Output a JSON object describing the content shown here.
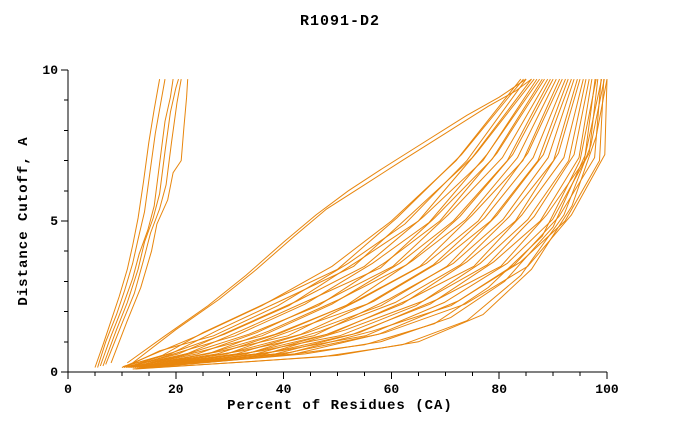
{
  "figure": {
    "title": "R1091-D2",
    "xlabel": "Percent of Residues (CA)",
    "ylabel": "Distance Cutoff, A"
  },
  "chart_data": {
    "type": "line",
    "title": "R1091-D2",
    "xlabel": "Percent of Residues (CA)",
    "ylabel": "Distance Cutoff, A",
    "xlim": [
      0,
      100
    ],
    "ylim": [
      0,
      10
    ],
    "x_major_ticks": [
      0,
      20,
      40,
      60,
      80,
      100
    ],
    "x_minor_step": 5,
    "y_major_ticks": [
      0,
      5,
      10
    ],
    "y_minor_step": 1,
    "grid": false,
    "legend_position": "none",
    "line_color": "#e8860d",
    "axis_color": "#000000",
    "series": [
      [
        [
          10,
          0.15
        ],
        [
          16,
          0.6
        ],
        [
          24,
          1.2
        ],
        [
          36,
          2.2
        ],
        [
          49,
          3.5
        ],
        [
          60,
          5.0
        ],
        [
          72,
          7.0
        ],
        [
          84,
          9.7
        ]
      ],
      [
        [
          10.2,
          0.18
        ],
        [
          17.5,
          0.55
        ],
        [
          25,
          1.3
        ],
        [
          37,
          2.3
        ],
        [
          50,
          3.4
        ],
        [
          61,
          5.1
        ],
        [
          73,
          7.2
        ],
        [
          84.5,
          9.7
        ]
      ],
      [
        [
          10.4,
          0.15
        ],
        [
          17,
          0.7
        ],
        [
          27,
          1.2
        ],
        [
          39,
          2.2
        ],
        [
          52,
          3.6
        ],
        [
          62.5,
          4.9
        ],
        [
          74,
          7.0
        ],
        [
          85,
          9.7
        ]
      ],
      [
        [
          10.6,
          0.2
        ],
        [
          19,
          0.6
        ],
        [
          28,
          1.4
        ],
        [
          40,
          2.4
        ],
        [
          53,
          3.5
        ],
        [
          63.5,
          5.2
        ],
        [
          75,
          7.1
        ],
        [
          86,
          9.7
        ]
      ],
      [
        [
          10.8,
          0.15
        ],
        [
          19.5,
          0.65
        ],
        [
          29,
          1.25
        ],
        [
          41,
          2.2
        ],
        [
          54,
          3.7
        ],
        [
          65,
          5.0
        ],
        [
          76,
          7.3
        ],
        [
          86.5,
          9.7
        ]
      ],
      [
        [
          11,
          0.18
        ],
        [
          20.5,
          0.6
        ],
        [
          30,
          1.35
        ],
        [
          42.5,
          2.35
        ],
        [
          55,
          3.5
        ],
        [
          66,
          5.15
        ],
        [
          77,
          7.0
        ],
        [
          87,
          9.7
        ]
      ],
      [
        [
          11.2,
          0.15
        ],
        [
          21.5,
          0.7
        ],
        [
          31,
          1.2
        ],
        [
          44,
          2.25
        ],
        [
          56.5,
          3.6
        ],
        [
          67,
          4.95
        ],
        [
          77.7,
          7.2
        ],
        [
          87.5,
          9.7
        ]
      ],
      [
        [
          11.4,
          0.2
        ],
        [
          22,
          0.6
        ],
        [
          32.5,
          1.4
        ],
        [
          45,
          2.4
        ],
        [
          58,
          3.45
        ],
        [
          68,
          5.1
        ],
        [
          78.7,
          7.05
        ],
        [
          88,
          9.7
        ]
      ],
      [
        [
          11.6,
          0.15
        ],
        [
          23,
          0.65
        ],
        [
          33.5,
          1.25
        ],
        [
          46.5,
          2.2
        ],
        [
          59,
          3.65
        ],
        [
          69,
          5.0
        ],
        [
          79.6,
          7.25
        ],
        [
          88.4,
          9.7
        ]
      ],
      [
        [
          11.8,
          0.18
        ],
        [
          24,
          0.6
        ],
        [
          35,
          1.3
        ],
        [
          47.7,
          2.35
        ],
        [
          60.3,
          3.5
        ],
        [
          70.5,
          5.2
        ],
        [
          80.6,
          7.1
        ],
        [
          89,
          9.7
        ]
      ],
      [
        [
          12,
          0.15
        ],
        [
          25,
          0.7
        ],
        [
          36,
          1.2
        ],
        [
          49,
          2.25
        ],
        [
          61.5,
          3.6
        ],
        [
          71.5,
          5.0
        ],
        [
          81.5,
          7.0
        ],
        [
          89.5,
          9.7
        ]
      ],
      [
        [
          12.2,
          0.2
        ],
        [
          26,
          0.6
        ],
        [
          37.2,
          1.35
        ],
        [
          50.3,
          2.4
        ],
        [
          62.8,
          3.55
        ],
        [
          72.7,
          5.15
        ],
        [
          82.5,
          7.2
        ],
        [
          90,
          9.7
        ]
      ],
      [
        [
          12.4,
          0.15
        ],
        [
          26.8,
          0.65
        ],
        [
          38.4,
          1.25
        ],
        [
          51.6,
          2.2
        ],
        [
          64,
          3.7
        ],
        [
          73.8,
          5.05
        ],
        [
          83.4,
          7.1
        ],
        [
          90.6,
          9.7
        ]
      ],
      [
        [
          12.6,
          0.18
        ],
        [
          27.7,
          0.6
        ],
        [
          39.6,
          1.3
        ],
        [
          52.9,
          2.3
        ],
        [
          65.3,
          3.5
        ],
        [
          75,
          5.2
        ],
        [
          84.4,
          7.0
        ],
        [
          91.2,
          9.7
        ]
      ],
      [
        [
          12.8,
          0.15
        ],
        [
          28.6,
          0.7
        ],
        [
          40.8,
          1.2
        ],
        [
          54.2,
          2.4
        ],
        [
          66.5,
          3.6
        ],
        [
          76.1,
          5.0
        ],
        [
          85.3,
          7.25
        ],
        [
          91.7,
          9.7
        ]
      ],
      [
        [
          13,
          0.2
        ],
        [
          29.5,
          0.6
        ],
        [
          42,
          1.4
        ],
        [
          55.5,
          2.25
        ],
        [
          67.8,
          3.55
        ],
        [
          77.3,
          5.1
        ],
        [
          86.3,
          7.1
        ],
        [
          92.3,
          9.7
        ]
      ],
      [
        [
          13.2,
          0.15
        ],
        [
          30.4,
          0.65
        ],
        [
          43.2,
          1.25
        ],
        [
          56.8,
          2.35
        ],
        [
          69,
          3.65
        ],
        [
          78.4,
          5.0
        ],
        [
          87.2,
          7.0
        ],
        [
          92.8,
          9.7
        ]
      ],
      [
        [
          13.4,
          0.18
        ],
        [
          31.3,
          0.6
        ],
        [
          44.4,
          1.3
        ],
        [
          58.1,
          2.2
        ],
        [
          70.3,
          3.5
        ],
        [
          79.6,
          5.2
        ],
        [
          88.2,
          7.2
        ],
        [
          93.4,
          9.7
        ]
      ],
      [
        [
          13.6,
          0.15
        ],
        [
          32.2,
          0.7
        ],
        [
          45.6,
          1.2
        ],
        [
          59.4,
          2.4
        ],
        [
          71.5,
          3.6
        ],
        [
          80.7,
          5.05
        ],
        [
          89.1,
          7.1
        ],
        [
          93.9,
          9.7
        ]
      ],
      [
        [
          13.8,
          0.2
        ],
        [
          33.1,
          0.6
        ],
        [
          46.8,
          1.35
        ],
        [
          60.7,
          2.3
        ],
        [
          72.8,
          3.55
        ],
        [
          81.9,
          5.15
        ],
        [
          90.1,
          7.0
        ],
        [
          94.5,
          9.7
        ]
      ],
      [
        [
          14,
          0.15
        ],
        [
          34,
          0.65
        ],
        [
          48,
          1.25
        ],
        [
          62,
          2.25
        ],
        [
          74,
          3.65
        ],
        [
          83,
          5.0
        ],
        [
          91,
          7.25
        ],
        [
          95,
          9.7
        ]
      ],
      [
        [
          14.2,
          0.18
        ],
        [
          34.9,
          0.6
        ],
        [
          49.2,
          1.3
        ],
        [
          63.3,
          2.4
        ],
        [
          75.3,
          3.5
        ],
        [
          84.2,
          5.2
        ],
        [
          92,
          7.1
        ],
        [
          95.6,
          9.7
        ]
      ],
      [
        [
          14.4,
          0.15
        ],
        [
          35.8,
          0.7
        ],
        [
          50.4,
          1.2
        ],
        [
          64.6,
          2.2
        ],
        [
          76.5,
          3.6
        ],
        [
          85.3,
          5.05
        ],
        [
          92.9,
          7.0
        ],
        [
          96.1,
          9.7
        ]
      ],
      [
        [
          14.6,
          0.2
        ],
        [
          36.7,
          0.6
        ],
        [
          51.6,
          1.4
        ],
        [
          65.9,
          2.35
        ],
        [
          77.8,
          3.55
        ],
        [
          86.5,
          5.15
        ],
        [
          93.9,
          7.2
        ],
        [
          96.7,
          9.7
        ]
      ],
      [
        [
          14.8,
          0.15
        ],
        [
          37.6,
          0.65
        ],
        [
          52.8,
          1.25
        ],
        [
          67.2,
          2.25
        ],
        [
          79,
          3.65
        ],
        [
          87.6,
          5.0
        ],
        [
          94.8,
          7.1
        ],
        [
          97.2,
          9.7
        ]
      ],
      [
        [
          15,
          0.18
        ],
        [
          38.5,
          0.6
        ],
        [
          54,
          1.3
        ],
        [
          68.5,
          2.4
        ],
        [
          80.3,
          3.5
        ],
        [
          88.8,
          5.2
        ],
        [
          95.8,
          7.0
        ],
        [
          97.8,
          9.7
        ]
      ],
      [
        [
          15.2,
          0.15
        ],
        [
          39.4,
          0.7
        ],
        [
          55.2,
          1.2
        ],
        [
          69.8,
          2.3
        ],
        [
          81.5,
          3.6
        ],
        [
          89.9,
          5.05
        ],
        [
          96.7,
          7.25
        ],
        [
          98.3,
          9.7
        ]
      ],
      [
        [
          15.4,
          0.2
        ],
        [
          40.3,
          0.6
        ],
        [
          56.4,
          1.35
        ],
        [
          71.1,
          2.2
        ],
        [
          82.8,
          3.55
        ],
        [
          91.1,
          5.15
        ],
        [
          97.7,
          7.1
        ],
        [
          98.9,
          9.7
        ]
      ],
      [
        [
          15.6,
          0.15
        ],
        [
          41.2,
          0.65
        ],
        [
          57.6,
          1.25
        ],
        [
          72.4,
          2.35
        ],
        [
          84,
          3.65
        ],
        [
          92.2,
          5.0
        ],
        [
          98.6,
          7.0
        ],
        [
          99.4,
          9.7
        ]
      ],
      [
        [
          15.8,
          0.18
        ],
        [
          42.1,
          0.6
        ],
        [
          58.8,
          1.3
        ],
        [
          73.7,
          2.25
        ],
        [
          85.3,
          3.5
        ],
        [
          93.4,
          5.2
        ],
        [
          99.6,
          7.2
        ],
        [
          100,
          9.7
        ]
      ],
      [
        [
          12,
          0.1
        ],
        [
          25,
          0.3
        ],
        [
          40,
          0.55
        ],
        [
          55,
          0.9
        ],
        [
          68,
          1.6
        ],
        [
          78,
          2.8
        ],
        [
          88,
          4.5
        ],
        [
          95,
          7.0
        ],
        [
          98,
          9.7
        ]
      ],
      [
        [
          13,
          0.12
        ],
        [
          28,
          0.35
        ],
        [
          44,
          0.6
        ],
        [
          58,
          1.0
        ],
        [
          71,
          1.8
        ],
        [
          81,
          3.0
        ],
        [
          90,
          4.8
        ],
        [
          96,
          7.2
        ],
        [
          99,
          9.7
        ]
      ],
      [
        [
          12.5,
          0.1
        ],
        [
          30,
          0.3
        ],
        [
          47,
          0.5
        ],
        [
          62,
          0.9
        ],
        [
          74,
          1.7
        ],
        [
          84,
          3.2
        ],
        [
          92,
          5.2
        ],
        [
          97,
          7.5
        ],
        [
          99.5,
          9.7
        ]
      ],
      [
        [
          13.5,
          0.12
        ],
        [
          32,
          0.32
        ],
        [
          50,
          0.55
        ],
        [
          65,
          1.0
        ],
        [
          77,
          1.9
        ],
        [
          86,
          3.4
        ],
        [
          93.5,
          5.5
        ],
        [
          98,
          7.8
        ],
        [
          100,
          9.7
        ]
      ],
      [
        [
          5,
          0.15
        ],
        [
          6.5,
          0.9
        ],
        [
          8,
          1.7
        ],
        [
          9.5,
          2.5
        ],
        [
          11,
          3.4
        ],
        [
          12,
          4.2
        ],
        [
          13,
          5.1
        ],
        [
          14,
          6.3
        ],
        [
          15,
          7.6
        ],
        [
          16,
          8.7
        ],
        [
          17,
          9.7
        ]
      ],
      [
        [
          5.5,
          0.15
        ],
        [
          7,
          1.0
        ],
        [
          9,
          1.9
        ],
        [
          10.5,
          2.7
        ],
        [
          12,
          3.6
        ],
        [
          13,
          4.4
        ],
        [
          14.2,
          5.3
        ],
        [
          15.2,
          6.6
        ],
        [
          16.2,
          7.9
        ],
        [
          17.2,
          8.9
        ],
        [
          18,
          9.7
        ]
      ],
      [
        [
          6,
          0.2
        ],
        [
          8,
          1.2
        ],
        [
          10,
          2.1
        ],
        [
          12,
          3.1
        ],
        [
          13.2,
          3.9
        ],
        [
          14.8,
          4.7
        ],
        [
          16,
          5.5
        ],
        [
          17,
          6.9
        ],
        [
          18,
          8.3
        ],
        [
          19,
          9.1
        ],
        [
          19.5,
          9.7
        ]
      ],
      [
        [
          6.5,
          0.2
        ],
        [
          9,
          1.4
        ],
        [
          11,
          2.3
        ],
        [
          13,
          3.4
        ],
        [
          14.2,
          4.3
        ],
        [
          15.8,
          5.1
        ],
        [
          17,
          5.9
        ],
        [
          18,
          7.3
        ],
        [
          19,
          8.6
        ],
        [
          20,
          9.4
        ],
        [
          20.5,
          9.7
        ]
      ],
      [
        [
          7,
          0.25
        ],
        [
          10,
          1.6
        ],
        [
          12.3,
          2.6
        ],
        [
          14,
          3.7
        ],
        [
          15.3,
          4.6
        ],
        [
          17,
          5.4
        ],
        [
          18.2,
          6.2
        ],
        [
          19.2,
          7.6
        ],
        [
          20.2,
          8.9
        ],
        [
          21,
          9.7
        ]
      ],
      [
        [
          8,
          0.3
        ],
        [
          11,
          1.7
        ],
        [
          13.5,
          2.8
        ],
        [
          15.5,
          4.0
        ],
        [
          16.5,
          4.9
        ],
        [
          18.5,
          5.7
        ],
        [
          19.5,
          6.6
        ],
        [
          21,
          7.0
        ],
        [
          21.5,
          8.1
        ],
        [
          22,
          9.1
        ],
        [
          22.2,
          9.7
        ]
      ],
      [
        [
          11,
          0.3
        ],
        [
          18,
          1.2
        ],
        [
          26,
          2.2
        ],
        [
          33,
          3.2
        ],
        [
          40,
          4.3
        ],
        [
          46,
          5.2
        ],
        [
          52,
          6.0
        ],
        [
          58,
          6.7
        ],
        [
          66,
          7.6
        ],
        [
          74,
          8.5
        ],
        [
          80,
          9.1
        ],
        [
          85,
          9.7
        ]
      ],
      [
        [
          12,
          0.3
        ],
        [
          20,
          1.4
        ],
        [
          28,
          2.4
        ],
        [
          35,
          3.4
        ],
        [
          42,
          4.5
        ],
        [
          48,
          5.4
        ],
        [
          55,
          6.2
        ],
        [
          62,
          7.0
        ],
        [
          70,
          7.9
        ],
        [
          78,
          8.8
        ],
        [
          83,
          9.3
        ],
        [
          86,
          9.7
        ]
      ]
    ]
  }
}
